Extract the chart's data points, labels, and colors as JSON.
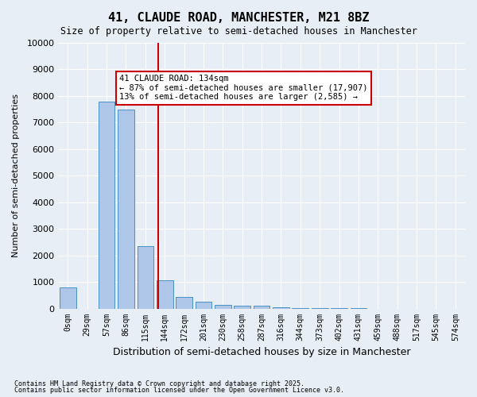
{
  "title1": "41, CLAUDE ROAD, MANCHESTER, M21 8BZ",
  "title2": "Size of property relative to semi-detached houses in Manchester",
  "xlabel": "Distribution of semi-detached houses by size in Manchester",
  "ylabel": "Number of semi-detached properties",
  "bin_labels": [
    "0sqm",
    "29sqm",
    "57sqm",
    "86sqm",
    "115sqm",
    "144sqm",
    "172sqm",
    "201sqm",
    "230sqm",
    "258sqm",
    "287sqm",
    "316sqm",
    "344sqm",
    "373sqm",
    "402sqm",
    "431sqm",
    "459sqm",
    "488sqm",
    "517sqm",
    "545sqm",
    "574sqm"
  ],
  "bar_values": [
    800,
    0,
    7800,
    7500,
    2350,
    1050,
    450,
    250,
    150,
    100,
    100,
    50,
    20,
    10,
    5,
    2,
    1,
    1,
    0,
    0,
    0
  ],
  "bar_color": "#aec6e8",
  "bar_edge_color": "#4a90c4",
  "property_value": 134,
  "property_label": "41 CLAUDE ROAD: 134sqm",
  "pct_smaller": 87,
  "pct_larger": 13,
  "n_smaller": 17907,
  "n_larger": 2585,
  "vline_color": "#cc0000",
  "annotation_box_color": "#cc0000",
  "ylim": [
    0,
    10000
  ],
  "yticks": [
    0,
    1000,
    2000,
    3000,
    4000,
    5000,
    6000,
    7000,
    8000,
    9000,
    10000
  ],
  "footer1": "Contains HM Land Registry data © Crown copyright and database right 2025.",
  "footer2": "Contains public sector information licensed under the Open Government Licence v3.0.",
  "bg_color": "#e8eef5",
  "grid_color": "#ffffff"
}
